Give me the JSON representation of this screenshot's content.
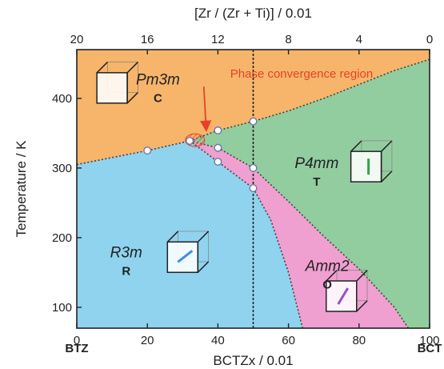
{
  "colors": {
    "cubic": "#f6b56a",
    "rhombohedral": "#8fd3ef",
    "tetragonal": "#92cd9f",
    "orthorhombic": "#ef9fd0",
    "boundary": "#444444",
    "marker_fill": "#ffffff",
    "marker_stroke": "#6a78b0",
    "annotation": "#e8412b",
    "arrow_tetragonal": "#3aa04a",
    "arrow_rhombohedral": "#3d8ee0",
    "arrow_orthorhombic": "#9a4fc0"
  },
  "chart_data": {
    "type": "scatter",
    "subtype": "phase-diagram",
    "xlabel": "BCTZx / 0.01",
    "ylabel": "Temperature / K",
    "top_xlabel": "[Zr / (Zr + Ti)] / 0.01",
    "xlim": [
      0,
      100
    ],
    "ylim": [
      70,
      470
    ],
    "x_ticks": [
      0,
      20,
      40,
      60,
      80,
      100
    ],
    "y_ticks": [
      100,
      200,
      300,
      400
    ],
    "top_ticks": [
      {
        "x": 0,
        "label": "20"
      },
      {
        "x": 20,
        "label": "16"
      },
      {
        "x": 40,
        "label": "12"
      },
      {
        "x": 60,
        "label": "8"
      },
      {
        "x": 80,
        "label": "4"
      },
      {
        "x": 100,
        "label": "0"
      }
    ],
    "end_labels": {
      "left": "BTZ",
      "right": "BCT"
    },
    "phases": [
      {
        "key": "cubic",
        "symbol": "Pm3m",
        "letter": "C",
        "label_at": [
          23,
          420
        ],
        "cube_at": [
          10,
          415
        ]
      },
      {
        "key": "tetragonal",
        "symbol": "P4mm",
        "letter": "T",
        "label_at": [
          68,
          300
        ],
        "cube_at": [
          82,
          302
        ]
      },
      {
        "key": "rhombohedral",
        "symbol": "R3m",
        "letter": "R",
        "label_at": [
          14,
          172
        ],
        "cube_at": [
          30,
          172
        ]
      },
      {
        "key": "orthorhombic",
        "symbol": "Amm2",
        "letter": "O",
        "label_at": [
          71,
          152
        ],
        "cube_at": [
          75,
          116
        ]
      }
    ],
    "boundaries": {
      "cubic_rhombo": [
        [
          0,
          305
        ],
        [
          20,
          325
        ],
        [
          32,
          339
        ]
      ],
      "cubic_tetra": [
        [
          32,
          339
        ],
        [
          40,
          354
        ],
        [
          50,
          367
        ],
        [
          60,
          382
        ],
        [
          70,
          400
        ],
        [
          80,
          420
        ],
        [
          90,
          440
        ],
        [
          100,
          456
        ]
      ],
      "rhombo_ortho": [
        [
          32,
          339
        ],
        [
          40,
          309
        ],
        [
          45,
          290
        ],
        [
          50,
          271
        ],
        [
          55,
          225
        ],
        [
          60,
          150
        ],
        [
          64,
          70
        ]
      ],
      "ortho_tetra": [
        [
          32,
          339
        ],
        [
          40,
          329
        ],
        [
          50,
          300
        ],
        [
          60,
          252
        ],
        [
          70,
          202
        ],
        [
          80,
          155
        ],
        [
          90,
          100
        ],
        [
          94,
          70
        ]
      ]
    },
    "points": [
      {
        "x": 20,
        "y": 325
      },
      {
        "x": 32,
        "y": 339
      },
      {
        "x": 40,
        "y": 354
      },
      {
        "x": 40,
        "y": 329
      },
      {
        "x": 40,
        "y": 309
      },
      {
        "x": 50,
        "y": 367
      },
      {
        "x": 50,
        "y": 300
      },
      {
        "x": 50,
        "y": 271
      }
    ],
    "dashed_x": 50,
    "annotation": {
      "text": "Phase convergence region",
      "from": [
        36,
        417
      ],
      "to": [
        36,
        342
      ]
    },
    "grid": false,
    "legend": "none"
  }
}
